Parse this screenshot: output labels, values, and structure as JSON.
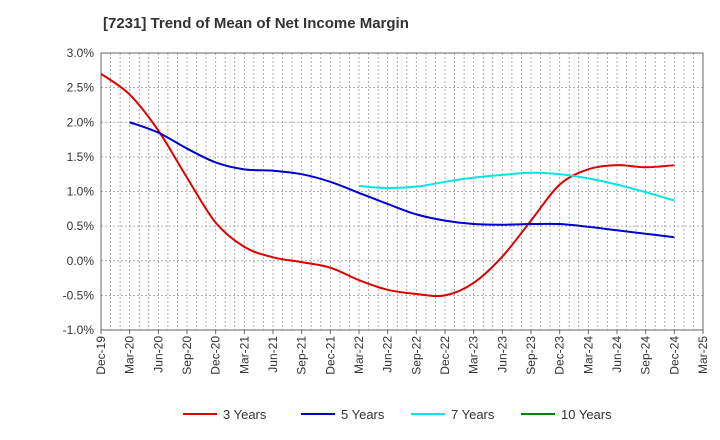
{
  "chart_data": {
    "type": "line",
    "title": "[7231]  Trend of Mean of Net Income Margin",
    "xlabel": "",
    "ylabel": "",
    "ylim": [
      -1.0,
      3.0
    ],
    "y_unit": "%",
    "y_ticks": [
      "3.0%",
      "2.5%",
      "2.0%",
      "1.5%",
      "1.0%",
      "0.5%",
      "0.0%",
      "-0.5%",
      "-1.0%"
    ],
    "x_ticks": [
      "Dec-19",
      "Mar-20",
      "Jun-20",
      "Sep-20",
      "Dec-20",
      "Mar-21",
      "Jun-21",
      "Sep-21",
      "Dec-21",
      "Mar-22",
      "Jun-22",
      "Sep-22",
      "Dec-22",
      "Mar-23",
      "Jun-23",
      "Sep-23",
      "Dec-23",
      "Mar-24",
      "Jun-24",
      "Sep-24",
      "Dec-24",
      "Mar-25"
    ],
    "grid": true,
    "legend_position": "bottom",
    "series": [
      {
        "name": "3 Years",
        "color": "#dd0000",
        "x": [
          "Dec-19",
          "Mar-20",
          "Jun-20",
          "Sep-20",
          "Dec-20",
          "Mar-21",
          "Jun-21",
          "Sep-21",
          "Dec-21",
          "Mar-22",
          "Jun-22",
          "Sep-22",
          "Dec-22",
          "Mar-23",
          "Jun-23",
          "Sep-23",
          "Dec-23",
          "Mar-24",
          "Jun-24",
          "Sep-24",
          "Dec-24"
        ],
        "values": [
          2.7,
          2.4,
          1.88,
          1.2,
          0.55,
          0.2,
          0.05,
          -0.02,
          -0.1,
          -0.28,
          -0.42,
          -0.48,
          -0.5,
          -0.32,
          0.06,
          0.58,
          1.1,
          1.32,
          1.38,
          1.35,
          1.38
        ]
      },
      {
        "name": "5 Years",
        "color": "#0000cc",
        "x": [
          "Mar-20",
          "Jun-20",
          "Sep-20",
          "Dec-20",
          "Mar-21",
          "Jun-21",
          "Sep-21",
          "Dec-21",
          "Mar-22",
          "Jun-22",
          "Sep-22",
          "Dec-22",
          "Mar-23",
          "Jun-23",
          "Sep-23",
          "Dec-23",
          "Mar-24",
          "Jun-24",
          "Sep-24",
          "Dec-24"
        ],
        "values": [
          2.0,
          1.85,
          1.62,
          1.42,
          1.32,
          1.3,
          1.25,
          1.14,
          0.98,
          0.82,
          0.67,
          0.58,
          0.53,
          0.52,
          0.53,
          0.53,
          0.49,
          0.44,
          0.39,
          0.34
        ]
      },
      {
        "name": "7 Years",
        "color": "#00e5e5",
        "x": [
          "Mar-22",
          "Jun-22",
          "Sep-22",
          "Dec-22",
          "Mar-23",
          "Jun-23",
          "Sep-23",
          "Dec-23",
          "Mar-24",
          "Jun-24",
          "Sep-24",
          "Dec-24"
        ],
        "values": [
          1.08,
          1.05,
          1.07,
          1.14,
          1.2,
          1.24,
          1.27,
          1.25,
          1.19,
          1.1,
          0.99,
          0.87
        ]
      },
      {
        "name": "10 Years",
        "color": "#008000",
        "x": [],
        "values": []
      }
    ]
  }
}
